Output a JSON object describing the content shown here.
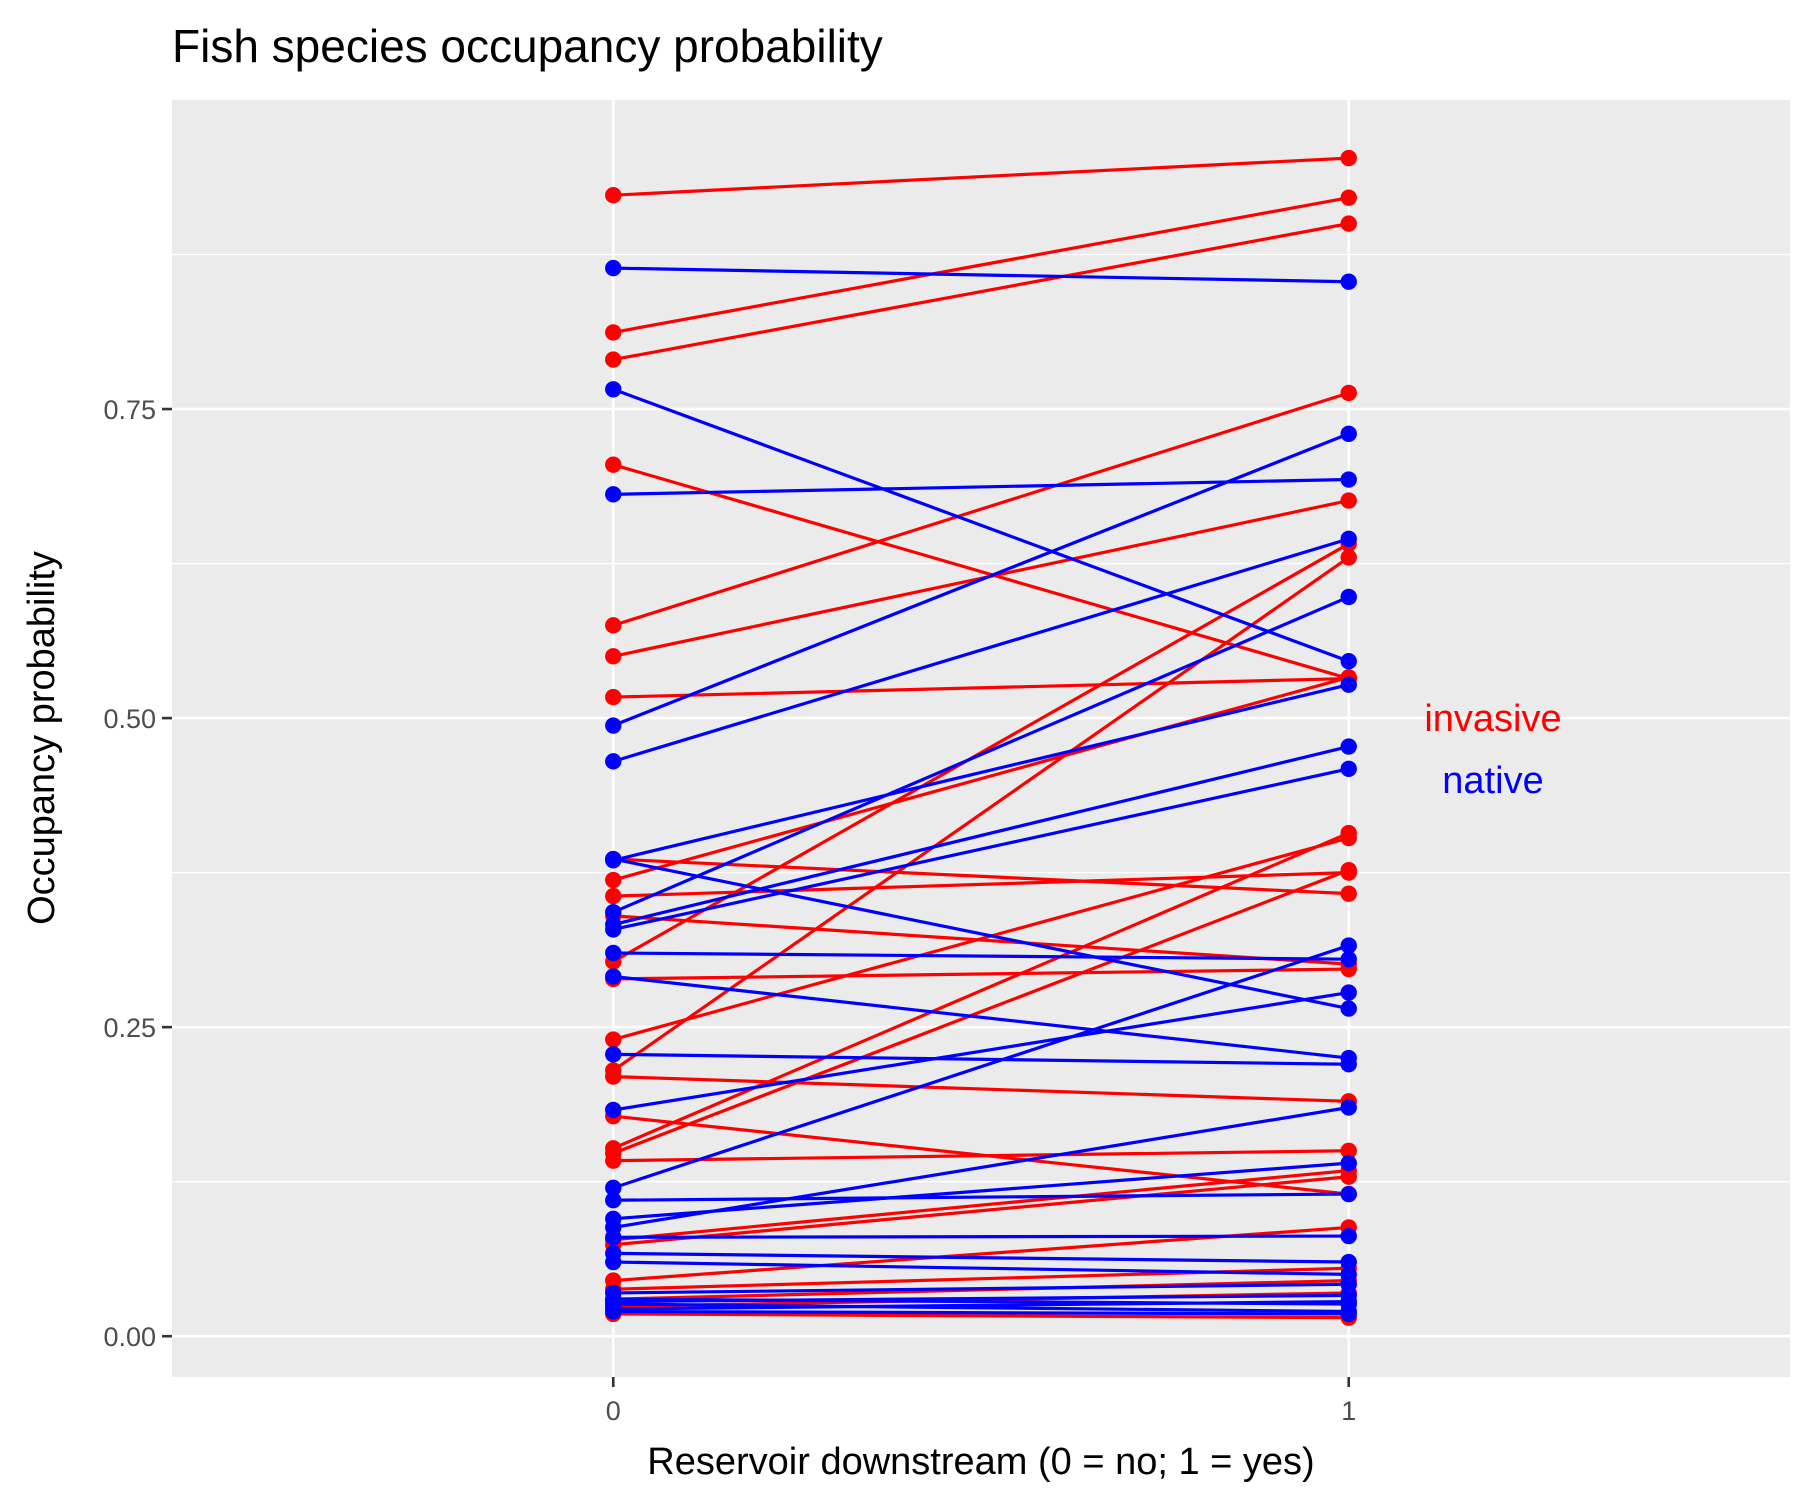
{
  "chart_data": {
    "type": "line",
    "title": "Fish species occupancy probability",
    "xlabel": "Reservoir downstream (0 = no; 1 = yes)",
    "ylabel": "Occupancy probability",
    "x": [
      "0",
      "1"
    ],
    "xlim": [
      -0.6,
      1.6
    ],
    "ylim": [
      -0.033,
      1.0
    ],
    "y_ticks": [
      "0.00",
      "0.25",
      "0.50",
      "0.75"
    ],
    "y_tick_values": [
      0,
      0.25,
      0.5,
      0.75
    ],
    "grid": true,
    "colors": {
      "invasive": "#ff0000",
      "native": "#0000ff",
      "panel": "#ebebeb",
      "grid": "#ffffff"
    },
    "group_labels": [
      {
        "name": "invasive",
        "text": "invasive",
        "color": "#ff0000"
      },
      {
        "name": "native",
        "text": "native",
        "color": "#0000ff"
      }
    ],
    "series": [
      {
        "group": "invasive",
        "values": [
          0.923,
          0.953
        ]
      },
      {
        "group": "invasive",
        "values": [
          0.812,
          0.921
        ]
      },
      {
        "group": "invasive",
        "values": [
          0.79,
          0.9
        ]
      },
      {
        "group": "invasive",
        "values": [
          0.705,
          0.532
        ]
      },
      {
        "group": "invasive",
        "values": [
          0.575,
          0.763
        ]
      },
      {
        "group": "invasive",
        "values": [
          0.55,
          0.676
        ]
      },
      {
        "group": "invasive",
        "values": [
          0.517,
          0.532
        ]
      },
      {
        "group": "invasive",
        "values": [
          0.386,
          0.358
        ]
      },
      {
        "group": "invasive",
        "values": [
          0.369,
          0.533
        ]
      },
      {
        "group": "invasive",
        "values": [
          0.356,
          0.375
        ]
      },
      {
        "group": "invasive",
        "values": [
          0.34,
          0.301
        ]
      },
      {
        "group": "invasive",
        "values": [
          0.303,
          0.641
        ]
      },
      {
        "group": "invasive",
        "values": [
          0.289,
          0.297
        ]
      },
      {
        "group": "invasive",
        "values": [
          0.24,
          0.403
        ]
      },
      {
        "group": "invasive",
        "values": [
          0.215,
          0.63
        ]
      },
      {
        "group": "invasive",
        "values": [
          0.21,
          0.19
        ]
      },
      {
        "group": "invasive",
        "values": [
          0.178,
          0.115
        ]
      },
      {
        "group": "invasive",
        "values": [
          0.152,
          0.407
        ]
      },
      {
        "group": "invasive",
        "values": [
          0.148,
          0.377
        ]
      },
      {
        "group": "invasive",
        "values": [
          0.142,
          0.15
        ]
      },
      {
        "group": "invasive",
        "values": [
          0.078,
          0.134
        ]
      },
      {
        "group": "invasive",
        "values": [
          0.074,
          0.129
        ]
      },
      {
        "group": "invasive",
        "values": [
          0.045,
          0.088
        ]
      },
      {
        "group": "invasive",
        "values": [
          0.038,
          0.055
        ]
      },
      {
        "group": "invasive",
        "values": [
          0.03,
          0.045
        ]
      },
      {
        "group": "invasive",
        "values": [
          0.024,
          0.035
        ]
      },
      {
        "group": "invasive",
        "values": [
          0.018,
          0.015
        ]
      },
      {
        "group": "native",
        "values": [
          0.864,
          0.853
        ]
      },
      {
        "group": "native",
        "values": [
          0.766,
          0.546
        ]
      },
      {
        "group": "native",
        "values": [
          0.681,
          0.693
        ]
      },
      {
        "group": "native",
        "values": [
          0.494,
          0.73
        ]
      },
      {
        "group": "native",
        "values": [
          0.465,
          0.645
        ]
      },
      {
        "group": "native",
        "values": [
          0.386,
          0.265
        ]
      },
      {
        "group": "native",
        "values": [
          0.385,
          0.527
        ]
      },
      {
        "group": "native",
        "values": [
          0.343,
          0.598
        ]
      },
      {
        "group": "native",
        "values": [
          0.333,
          0.477
        ]
      },
      {
        "group": "native",
        "values": [
          0.329,
          0.459
        ]
      },
      {
        "group": "native",
        "values": [
          0.31,
          0.305
        ]
      },
      {
        "group": "native",
        "values": [
          0.291,
          0.225
        ]
      },
      {
        "group": "native",
        "values": [
          0.228,
          0.22
        ]
      },
      {
        "group": "native",
        "values": [
          0.183,
          0.278
        ]
      },
      {
        "group": "native",
        "values": [
          0.12,
          0.316
        ]
      },
      {
        "group": "native",
        "values": [
          0.11,
          0.115
        ]
      },
      {
        "group": "native",
        "values": [
          0.095,
          0.14
        ]
      },
      {
        "group": "native",
        "values": [
          0.088,
          0.185
        ]
      },
      {
        "group": "native",
        "values": [
          0.08,
          0.081
        ]
      },
      {
        "group": "native",
        "values": [
          0.067,
          0.06
        ]
      },
      {
        "group": "native",
        "values": [
          0.06,
          0.05
        ]
      },
      {
        "group": "native",
        "values": [
          0.035,
          0.042
        ]
      },
      {
        "group": "native",
        "values": [
          0.03,
          0.026
        ]
      },
      {
        "group": "native",
        "values": [
          0.028,
          0.033
        ]
      },
      {
        "group": "native",
        "values": [
          0.026,
          0.02
        ]
      },
      {
        "group": "native",
        "values": [
          0.022,
          0.028
        ]
      },
      {
        "group": "native",
        "values": [
          0.02,
          0.018
        ]
      }
    ]
  }
}
